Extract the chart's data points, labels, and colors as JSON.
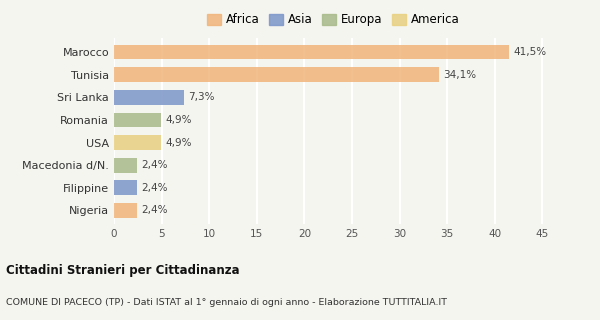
{
  "categories": [
    "Marocco",
    "Tunisia",
    "Sri Lanka",
    "Romania",
    "USA",
    "Macedonia d/N.",
    "Filippine",
    "Nigeria"
  ],
  "values": [
    41.5,
    34.1,
    7.3,
    4.9,
    4.9,
    2.4,
    2.4,
    2.4
  ],
  "labels": [
    "41,5%",
    "34,1%",
    "7,3%",
    "4,9%",
    "4,9%",
    "2,4%",
    "2,4%",
    "2,4%"
  ],
  "colors": [
    "#f0b47a",
    "#f0b47a",
    "#7b96c8",
    "#a8ba8a",
    "#e8d080",
    "#a8ba8a",
    "#7b96c8",
    "#f0b47a"
  ],
  "legend_labels": [
    "Africa",
    "Asia",
    "Europa",
    "America"
  ],
  "legend_colors": [
    "#f0b47a",
    "#7b96c8",
    "#a8ba8a",
    "#e8d080"
  ],
  "xlim": [
    0,
    46
  ],
  "xticks": [
    0,
    5,
    10,
    15,
    20,
    25,
    30,
    35,
    40,
    45
  ],
  "title_main": "Cittadini Stranieri per Cittadinanza",
  "title_sub": "COMUNE DI PACECO (TP) - Dati ISTAT al 1° gennaio di ogni anno - Elaborazione TUTTITALIA.IT",
  "bg_color": "#f5f5f0",
  "grid_color": "#ffffff",
  "bar_height": 0.65
}
